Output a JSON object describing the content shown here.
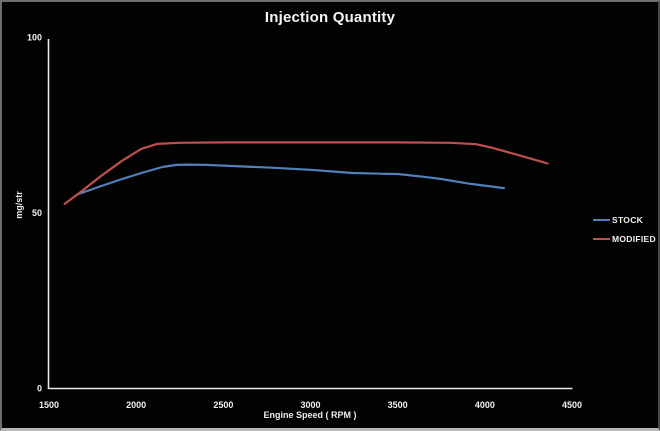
{
  "chart_data": {
    "type": "line",
    "title": "Injection Quantity",
    "xlabel": "Engine Speed ( RPM )",
    "ylabel": "mg/str",
    "xlim": [
      1500,
      4500
    ],
    "ylim": [
      0,
      100
    ],
    "x_ticks": [
      1500,
      2000,
      2500,
      3000,
      3500,
      4000,
      4500
    ],
    "y_ticks": [
      0,
      50,
      100
    ],
    "grid": false,
    "background_color": "#020202",
    "axis_color": "#e8e8e8",
    "text_color": "#f0f0f0",
    "legend_position": "right",
    "series": [
      {
        "name": "STOCK",
        "color": "#4F81BD",
        "points": [
          [
            1670,
            55.4
          ],
          [
            1800,
            57.7
          ],
          [
            1920,
            59.7
          ],
          [
            2030,
            61.4
          ],
          [
            2150,
            63.1
          ],
          [
            2230,
            63.7
          ],
          [
            2300,
            63.8
          ],
          [
            2400,
            63.7
          ],
          [
            2550,
            63.4
          ],
          [
            2780,
            62.9
          ],
          [
            3000,
            62.3
          ],
          [
            3240,
            61.4
          ],
          [
            3400,
            61.2
          ],
          [
            3500,
            61.1
          ],
          [
            3650,
            60.3
          ],
          [
            3750,
            59.7
          ],
          [
            3920,
            58.3
          ],
          [
            4110,
            57.1
          ]
        ]
      },
      {
        "name": "MODIFIED",
        "color": "#C0504D",
        "points": [
          [
            1590,
            52.6
          ],
          [
            1690,
            56.3
          ],
          [
            1800,
            60.6
          ],
          [
            1920,
            64.9
          ],
          [
            2030,
            68.3
          ],
          [
            2120,
            69.7
          ],
          [
            2250,
            70.0
          ],
          [
            2500,
            70.1
          ],
          [
            3000,
            70.1
          ],
          [
            3500,
            70.1
          ],
          [
            3800,
            70.0
          ],
          [
            3950,
            69.6
          ],
          [
            4040,
            68.6
          ],
          [
            4150,
            67.1
          ],
          [
            4270,
            65.4
          ],
          [
            4360,
            64.1
          ]
        ]
      }
    ]
  }
}
